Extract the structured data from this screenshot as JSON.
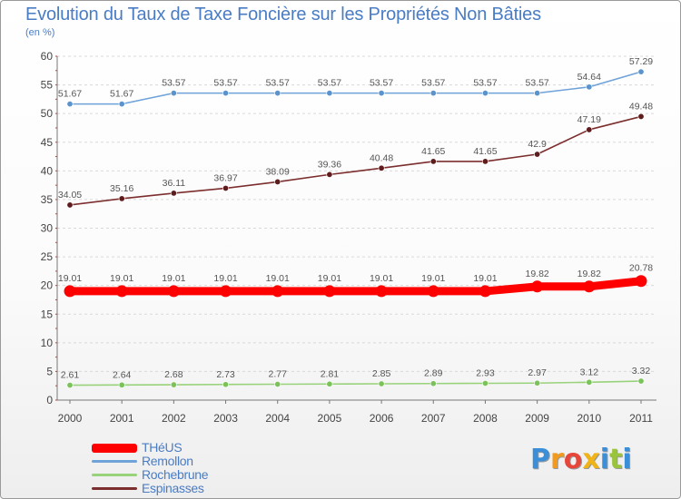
{
  "title": "Evolution du Taux de Taxe Foncière sur les Propriétés Non Bâties",
  "unit": "(en %)",
  "logo": {
    "letters": [
      "P",
      "r",
      "o",
      "x",
      "i",
      "t",
      "i"
    ],
    "colors": [
      "#3a8fd8",
      "#f39a1c",
      "#e7463a",
      "#f0b318",
      "#3a8fd8",
      "#9ac43b",
      "#3a8fd8"
    ]
  },
  "chart_data": {
    "type": "line",
    "x": [
      "2000",
      "2001",
      "2002",
      "2003",
      "2004",
      "2005",
      "2006",
      "2007",
      "2008",
      "2009",
      "2010",
      "2011"
    ],
    "ylim": [
      0,
      60
    ],
    "yticks": [
      0,
      5,
      10,
      15,
      20,
      25,
      30,
      35,
      40,
      45,
      50,
      55,
      60
    ],
    "grid": "horizontal-dashed",
    "legend": "bottom-left",
    "series": [
      {
        "name": "Remollon",
        "color": "#6ea2d8",
        "marker": "#5b93cc",
        "values": [
          51.67,
          51.67,
          53.57,
          53.57,
          53.57,
          53.57,
          53.57,
          53.57,
          53.57,
          53.57,
          54.64,
          57.29
        ],
        "labels": [
          "51.67",
          "51.67",
          "53.57",
          "53.57",
          "53.57",
          "53.57",
          "53.57",
          "53.57",
          "53.57",
          "53.57",
          "54.64",
          "57.29"
        ]
      },
      {
        "name": "Espinasses",
        "color": "#7c2e2e",
        "marker": "#5e1c1c",
        "values": [
          34.05,
          35.16,
          36.11,
          36.97,
          38.09,
          39.36,
          40.48,
          41.65,
          41.65,
          42.9,
          47.19,
          49.48
        ],
        "labels": [
          "34.05",
          "35.16",
          "36.11",
          "36.97",
          "38.09",
          "39.36",
          "40.48",
          "41.65",
          "41.65",
          "42.9",
          "47.19",
          "49.48"
        ]
      },
      {
        "name": "THéUS",
        "color": "#ff0000",
        "marker": "#ff0000",
        "thick": true,
        "values": [
          19.01,
          19.01,
          19.01,
          19.01,
          19.01,
          19.01,
          19.01,
          19.01,
          19.01,
          19.82,
          19.82,
          20.78
        ],
        "labels": [
          "19.01",
          "19.01",
          "19.01",
          "19.01",
          "19.01",
          "19.01",
          "19.01",
          "19.01",
          "19.01",
          "19.82",
          "19.82",
          "20.78"
        ]
      },
      {
        "name": "Rochebrune",
        "color": "#98d27a",
        "marker": "#7cc25a",
        "values": [
          2.61,
          2.64,
          2.68,
          2.73,
          2.77,
          2.81,
          2.85,
          2.89,
          2.93,
          2.97,
          3.12,
          3.32
        ],
        "labels": [
          "2.61",
          "2.64",
          "2.68",
          "2.73",
          "2.77",
          "2.81",
          "2.85",
          "2.89",
          "2.93",
          "2.97",
          "3.12",
          "3.32"
        ]
      }
    ],
    "legend_order": [
      "THéUS",
      "Remollon",
      "Rochebrune",
      "Espinasses"
    ]
  }
}
